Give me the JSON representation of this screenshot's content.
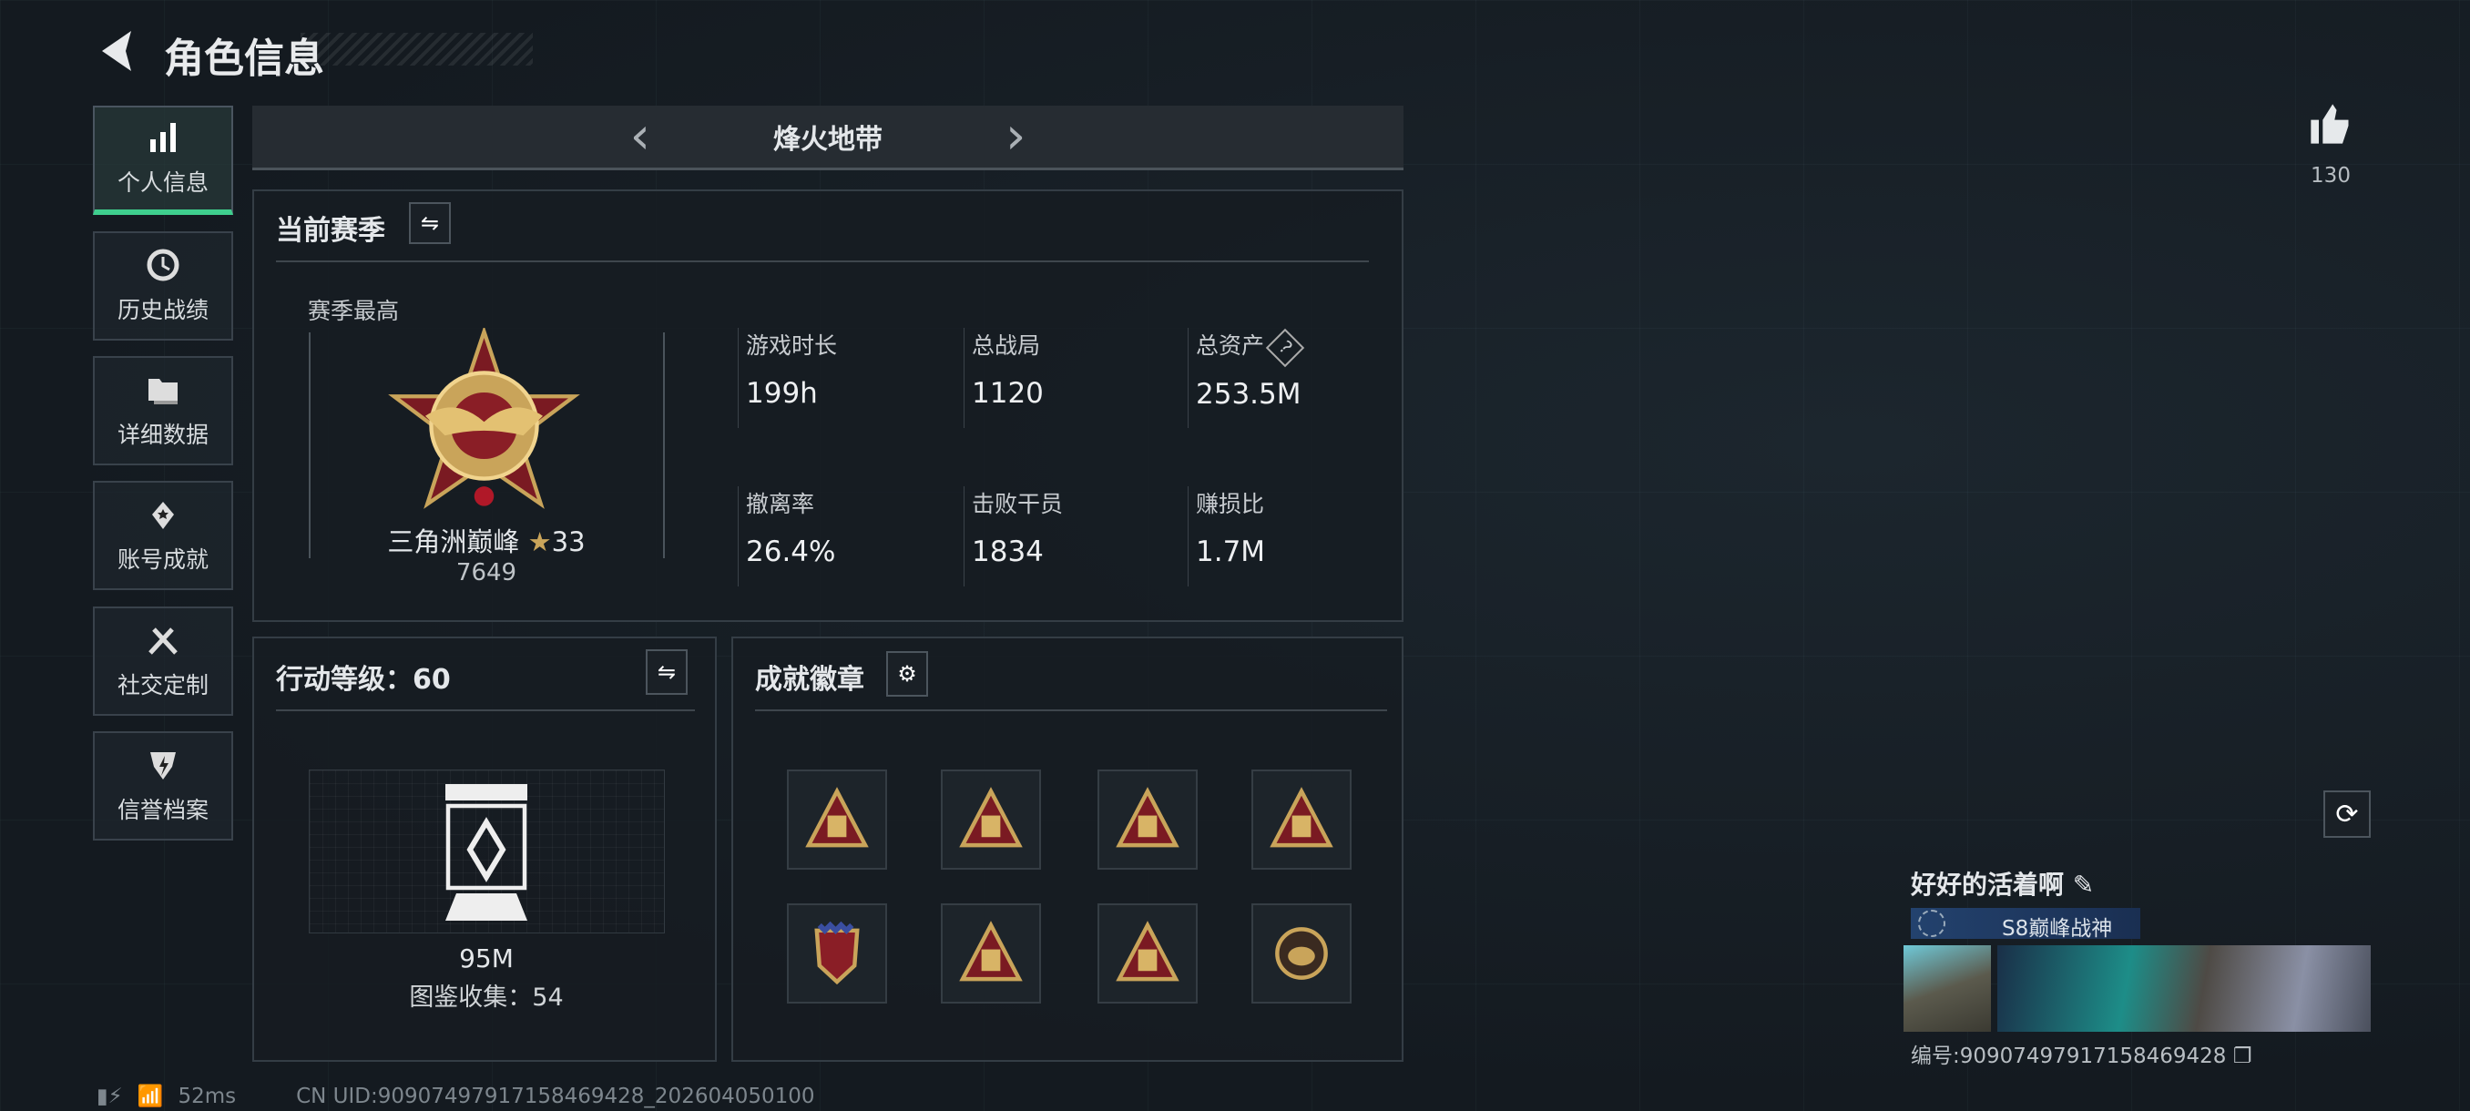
{
  "header": {
    "title": "角色信息",
    "back_icon": "back-arrow-icon"
  },
  "sidebar": {
    "items": [
      {
        "label": "个人信息",
        "icon": "bar-chart-icon",
        "active": true
      },
      {
        "label": "历史战绩",
        "icon": "history-clock-icon"
      },
      {
        "label": "详细数据",
        "icon": "folder-icon"
      },
      {
        "label": "账号成就",
        "icon": "achievement-icon"
      },
      {
        "label": "社交定制",
        "icon": "tools-icon"
      },
      {
        "label": "信誉档案",
        "icon": "shield-icon"
      }
    ]
  },
  "mode": {
    "label": "烽火地带"
  },
  "season": {
    "title": "当前赛季",
    "best_label": "赛季最高",
    "rank_name": "三角洲巅峰",
    "rank_stars": "33",
    "rank_score": "7649",
    "stats": [
      {
        "label": "游戏时长",
        "value": "199h"
      },
      {
        "label": "总战局",
        "value": "1120"
      },
      {
        "label": "总资产",
        "value": "253.5M",
        "help": "?"
      },
      {
        "label": "撤离率",
        "value": "26.4%"
      },
      {
        "label": "击败干员",
        "value": "1834"
      },
      {
        "label": "赚损比",
        "value": "1.7M"
      }
    ]
  },
  "level": {
    "title": "行动等级：60",
    "value": "95M",
    "collection": "图鉴收集：54"
  },
  "badges": {
    "title": "成就徽章",
    "count": 8
  },
  "likes": {
    "count": "130"
  },
  "profile": {
    "name": "好好的活着啊",
    "title_badge": "S8巅峰战神",
    "id": "编号:9090749791715846942​8"
  },
  "status": {
    "ping": "52ms",
    "uid": "CN UID:90907497917158469428_202604050100"
  },
  "colors": {
    "accent": "#3fcf8e",
    "gold": "#c9a45a",
    "red": "#7a1a22"
  }
}
